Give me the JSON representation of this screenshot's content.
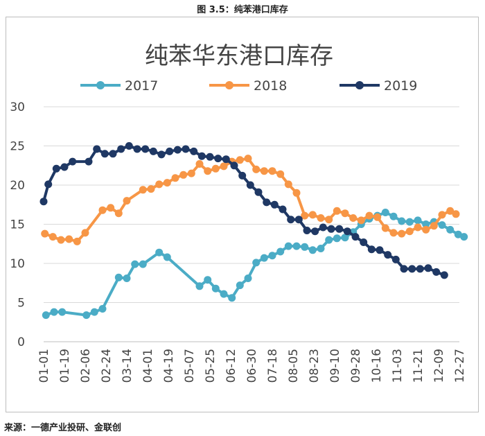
{
  "caption": "图 3.5：纯苯港口库存",
  "source": "来源：一德产业投研、金联创",
  "chart_data": {
    "type": "line",
    "title": "纯苯华东港口库存",
    "xlabel": "",
    "ylabel": "",
    "ylim": [
      0,
      30
    ],
    "yticks": [
      0,
      5,
      10,
      15,
      20,
      25,
      30
    ],
    "x_domain": [
      1,
      361
    ],
    "grid": true,
    "legend_position": "top",
    "x_ticks": [
      {
        "label": "01-01",
        "day": 1
      },
      {
        "label": "01-19",
        "day": 19
      },
      {
        "label": "02-06",
        "day": 37
      },
      {
        "label": "02-24",
        "day": 55
      },
      {
        "label": "03-14",
        "day": 73
      },
      {
        "label": "04-01",
        "day": 91
      },
      {
        "label": "04-19",
        "day": 109
      },
      {
        "label": "05-07",
        "day": 127
      },
      {
        "label": "05-25",
        "day": 145
      },
      {
        "label": "06-12",
        "day": 163
      },
      {
        "label": "06-30",
        "day": 181
      },
      {
        "label": "07-18",
        "day": 199
      },
      {
        "label": "08-05",
        "day": 217
      },
      {
        "label": "08-23",
        "day": 235
      },
      {
        "label": "09-10",
        "day": 253
      },
      {
        "label": "09-28",
        "day": 271
      },
      {
        "label": "10-16",
        "day": 289
      },
      {
        "label": "11-03",
        "day": 307
      },
      {
        "label": "11-21",
        "day": 325
      },
      {
        "label": "12-09",
        "day": 343
      },
      {
        "label": "12-27",
        "day": 361
      }
    ],
    "series": [
      {
        "name": "2017",
        "color": "#4bacc6",
        "points": [
          [
            3,
            3.4
          ],
          [
            10,
            3.8
          ],
          [
            17,
            3.8
          ],
          [
            38,
            3.4
          ],
          [
            45,
            3.8
          ],
          [
            52,
            4.2
          ],
          [
            66,
            8.2
          ],
          [
            73,
            8.1
          ],
          [
            80,
            9.9
          ],
          [
            87,
            9.9
          ],
          [
            101,
            11.4
          ],
          [
            108,
            10.8
          ],
          [
            136,
            7.1
          ],
          [
            143,
            7.9
          ],
          [
            150,
            6.8
          ],
          [
            157,
            6.1
          ],
          [
            164,
            5.6
          ],
          [
            171,
            7.2
          ],
          [
            178,
            8.1
          ],
          [
            185,
            10.1
          ],
          [
            192,
            10.7
          ],
          [
            199,
            11.0
          ],
          [
            206,
            11.5
          ],
          [
            213,
            12.2
          ],
          [
            220,
            12.2
          ],
          [
            227,
            12.1
          ],
          [
            234,
            11.7
          ],
          [
            241,
            11.9
          ],
          [
            248,
            13.0
          ],
          [
            255,
            13.2
          ],
          [
            262,
            13.3
          ],
          [
            269,
            14.0
          ],
          [
            276,
            15.0
          ],
          [
            283,
            15.7
          ],
          [
            290,
            16.1
          ],
          [
            297,
            16.5
          ],
          [
            304,
            16.0
          ],
          [
            311,
            15.4
          ],
          [
            318,
            15.3
          ],
          [
            325,
            15.5
          ],
          [
            332,
            15.0
          ],
          [
            339,
            15.3
          ],
          [
            346,
            14.9
          ],
          [
            353,
            14.3
          ],
          [
            360,
            13.7
          ],
          [
            365,
            13.4
          ]
        ]
      },
      {
        "name": "2018",
        "color": "#f79646",
        "points": [
          [
            2,
            13.8
          ],
          [
            9,
            13.4
          ],
          [
            16,
            13.0
          ],
          [
            23,
            13.1
          ],
          [
            30,
            12.8
          ],
          [
            37,
            13.9
          ],
          [
            52,
            16.8
          ],
          [
            59,
            17.1
          ],
          [
            66,
            16.4
          ],
          [
            73,
            18.0
          ],
          [
            87,
            19.4
          ],
          [
            94,
            19.5
          ],
          [
            101,
            20.1
          ],
          [
            108,
            20.3
          ],
          [
            115,
            20.9
          ],
          [
            122,
            21.3
          ],
          [
            129,
            21.5
          ],
          [
            136,
            22.7
          ],
          [
            143,
            21.8
          ],
          [
            150,
            22.1
          ],
          [
            157,
            22.4
          ],
          [
            164,
            23.0
          ],
          [
            171,
            23.2
          ],
          [
            178,
            23.4
          ],
          [
            185,
            22.0
          ],
          [
            192,
            21.8
          ],
          [
            199,
            21.8
          ],
          [
            206,
            21.4
          ],
          [
            213,
            20.1
          ],
          [
            220,
            19.0
          ],
          [
            227,
            16.1
          ],
          [
            234,
            16.2
          ],
          [
            241,
            15.8
          ],
          [
            248,
            15.6
          ],
          [
            255,
            16.7
          ],
          [
            262,
            16.4
          ],
          [
            269,
            15.8
          ],
          [
            276,
            15.5
          ],
          [
            283,
            16.1
          ],
          [
            290,
            15.9
          ],
          [
            297,
            14.5
          ],
          [
            304,
            13.9
          ],
          [
            311,
            13.8
          ],
          [
            318,
            14.1
          ],
          [
            325,
            14.6
          ],
          [
            332,
            14.3
          ],
          [
            339,
            14.8
          ],
          [
            346,
            16.2
          ],
          [
            353,
            16.7
          ],
          [
            358,
            16.3
          ]
        ]
      },
      {
        "name": "2019",
        "color": "#1f3864",
        "points": [
          [
            1,
            17.9
          ],
          [
            5,
            20.1
          ],
          [
            12,
            22.1
          ],
          [
            19,
            22.3
          ],
          [
            26,
            23.0
          ],
          [
            40,
            23.0
          ],
          [
            47,
            24.6
          ],
          [
            54,
            24.0
          ],
          [
            61,
            24.0
          ],
          [
            68,
            24.6
          ],
          [
            75,
            25.0
          ],
          [
            82,
            24.6
          ],
          [
            89,
            24.6
          ],
          [
            96,
            24.3
          ],
          [
            103,
            23.9
          ],
          [
            110,
            24.3
          ],
          [
            117,
            24.5
          ],
          [
            124,
            24.6
          ],
          [
            131,
            24.3
          ],
          [
            138,
            23.7
          ],
          [
            145,
            23.6
          ],
          [
            152,
            23.4
          ],
          [
            159,
            23.3
          ],
          [
            166,
            22.5
          ],
          [
            173,
            21.2
          ],
          [
            180,
            20.0
          ],
          [
            187,
            19.1
          ],
          [
            194,
            17.8
          ],
          [
            201,
            17.5
          ],
          [
            208,
            16.9
          ],
          [
            215,
            15.6
          ],
          [
            222,
            15.6
          ],
          [
            229,
            14.2
          ],
          [
            236,
            14.1
          ],
          [
            243,
            14.6
          ],
          [
            250,
            14.4
          ],
          [
            257,
            14.4
          ],
          [
            264,
            14.1
          ],
          [
            271,
            13.4
          ],
          [
            278,
            12.7
          ],
          [
            285,
            11.8
          ],
          [
            292,
            11.7
          ],
          [
            299,
            11.1
          ],
          [
            306,
            10.5
          ],
          [
            313,
            9.3
          ],
          [
            320,
            9.3
          ],
          [
            327,
            9.3
          ],
          [
            334,
            9.4
          ],
          [
            341,
            8.9
          ],
          [
            348,
            8.5
          ]
        ]
      }
    ]
  }
}
